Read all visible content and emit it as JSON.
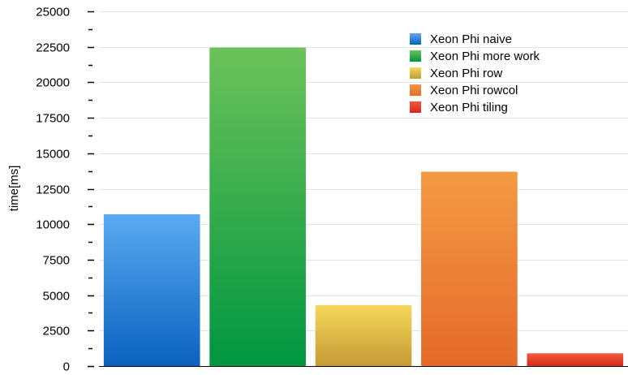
{
  "chart_data": {
    "type": "bar",
    "ylabel": "time[ms]",
    "xlabel": "",
    "ylim": [
      0,
      25000
    ],
    "y_ticks": [
      "0",
      "2500",
      "5000",
      "7500",
      "10000",
      "12500",
      "15000",
      "17500",
      "20000",
      "22500",
      "25000"
    ],
    "grid": true,
    "legend_position": "top-right",
    "series": [
      {
        "name": "Xeon Phi naive",
        "value": 10700,
        "color": "#3d8fe0",
        "color_top": "#5aaaf2",
        "color_bottom": "#0a62bf"
      },
      {
        "name": "Xeon Phi more work",
        "value": 22450,
        "color": "#2aa84a",
        "color_top": "#6cc25a",
        "color_bottom": "#009640"
      },
      {
        "name": "Xeon Phi row",
        "value": 4300,
        "color": "#e8c84a",
        "color_top": "#f6d85a",
        "color_bottom": "#c49a36"
      },
      {
        "name": "Xeon Phi rowcol",
        "value": 13700,
        "color": "#f08a38",
        "color_top": "#f49a44",
        "color_bottom": "#e56a2a"
      },
      {
        "name": "Xeon Phi tiling",
        "value": 900,
        "color": "#e8402a",
        "color_top": "#f25a3a",
        "color_bottom": "#d8281c"
      }
    ]
  }
}
